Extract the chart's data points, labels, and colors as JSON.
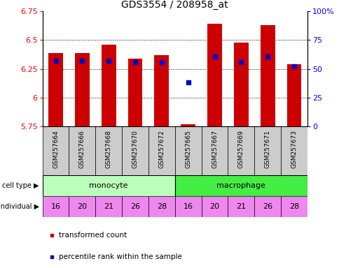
{
  "title": "GDS3554 / 208958_at",
  "samples": [
    "GSM257664",
    "GSM257666",
    "GSM257668",
    "GSM257670",
    "GSM257672",
    "GSM257665",
    "GSM257667",
    "GSM257669",
    "GSM257671",
    "GSM257673"
  ],
  "transformed_count": [
    6.39,
    6.39,
    6.46,
    6.34,
    6.37,
    5.77,
    6.64,
    6.48,
    6.63,
    6.29
  ],
  "percentile_rank": [
    57,
    57,
    57,
    56,
    56,
    38,
    61,
    56,
    61,
    52
  ],
  "individuals": [
    "16",
    "20",
    "21",
    "26",
    "28",
    "16",
    "20",
    "21",
    "26",
    "28"
  ],
  "ylim_left": [
    5.75,
    6.75
  ],
  "ylim_right": [
    0,
    100
  ],
  "yticks_left": [
    5.75,
    6.0,
    6.25,
    6.5,
    6.75
  ],
  "ytick_labels_left": [
    "5.75",
    "6",
    "6.25",
    "6.5",
    "6.75"
  ],
  "yticks_right": [
    0,
    25,
    50,
    75,
    100
  ],
  "ytick_labels_right": [
    "0",
    "25",
    "50",
    "75",
    "100%"
  ],
  "bar_color": "#cc0000",
  "dot_color": "#0000cc",
  "bar_bottom": 5.75,
  "monocyte_color": "#bbffbb",
  "macrophage_color": "#44ee44",
  "individual_color": "#ee88ee",
  "sample_bg_color": "#cccccc",
  "legend_red_label": "transformed count",
  "legend_blue_label": "percentile rank within the sample",
  "n_monocyte": 5,
  "n_macrophage": 5
}
